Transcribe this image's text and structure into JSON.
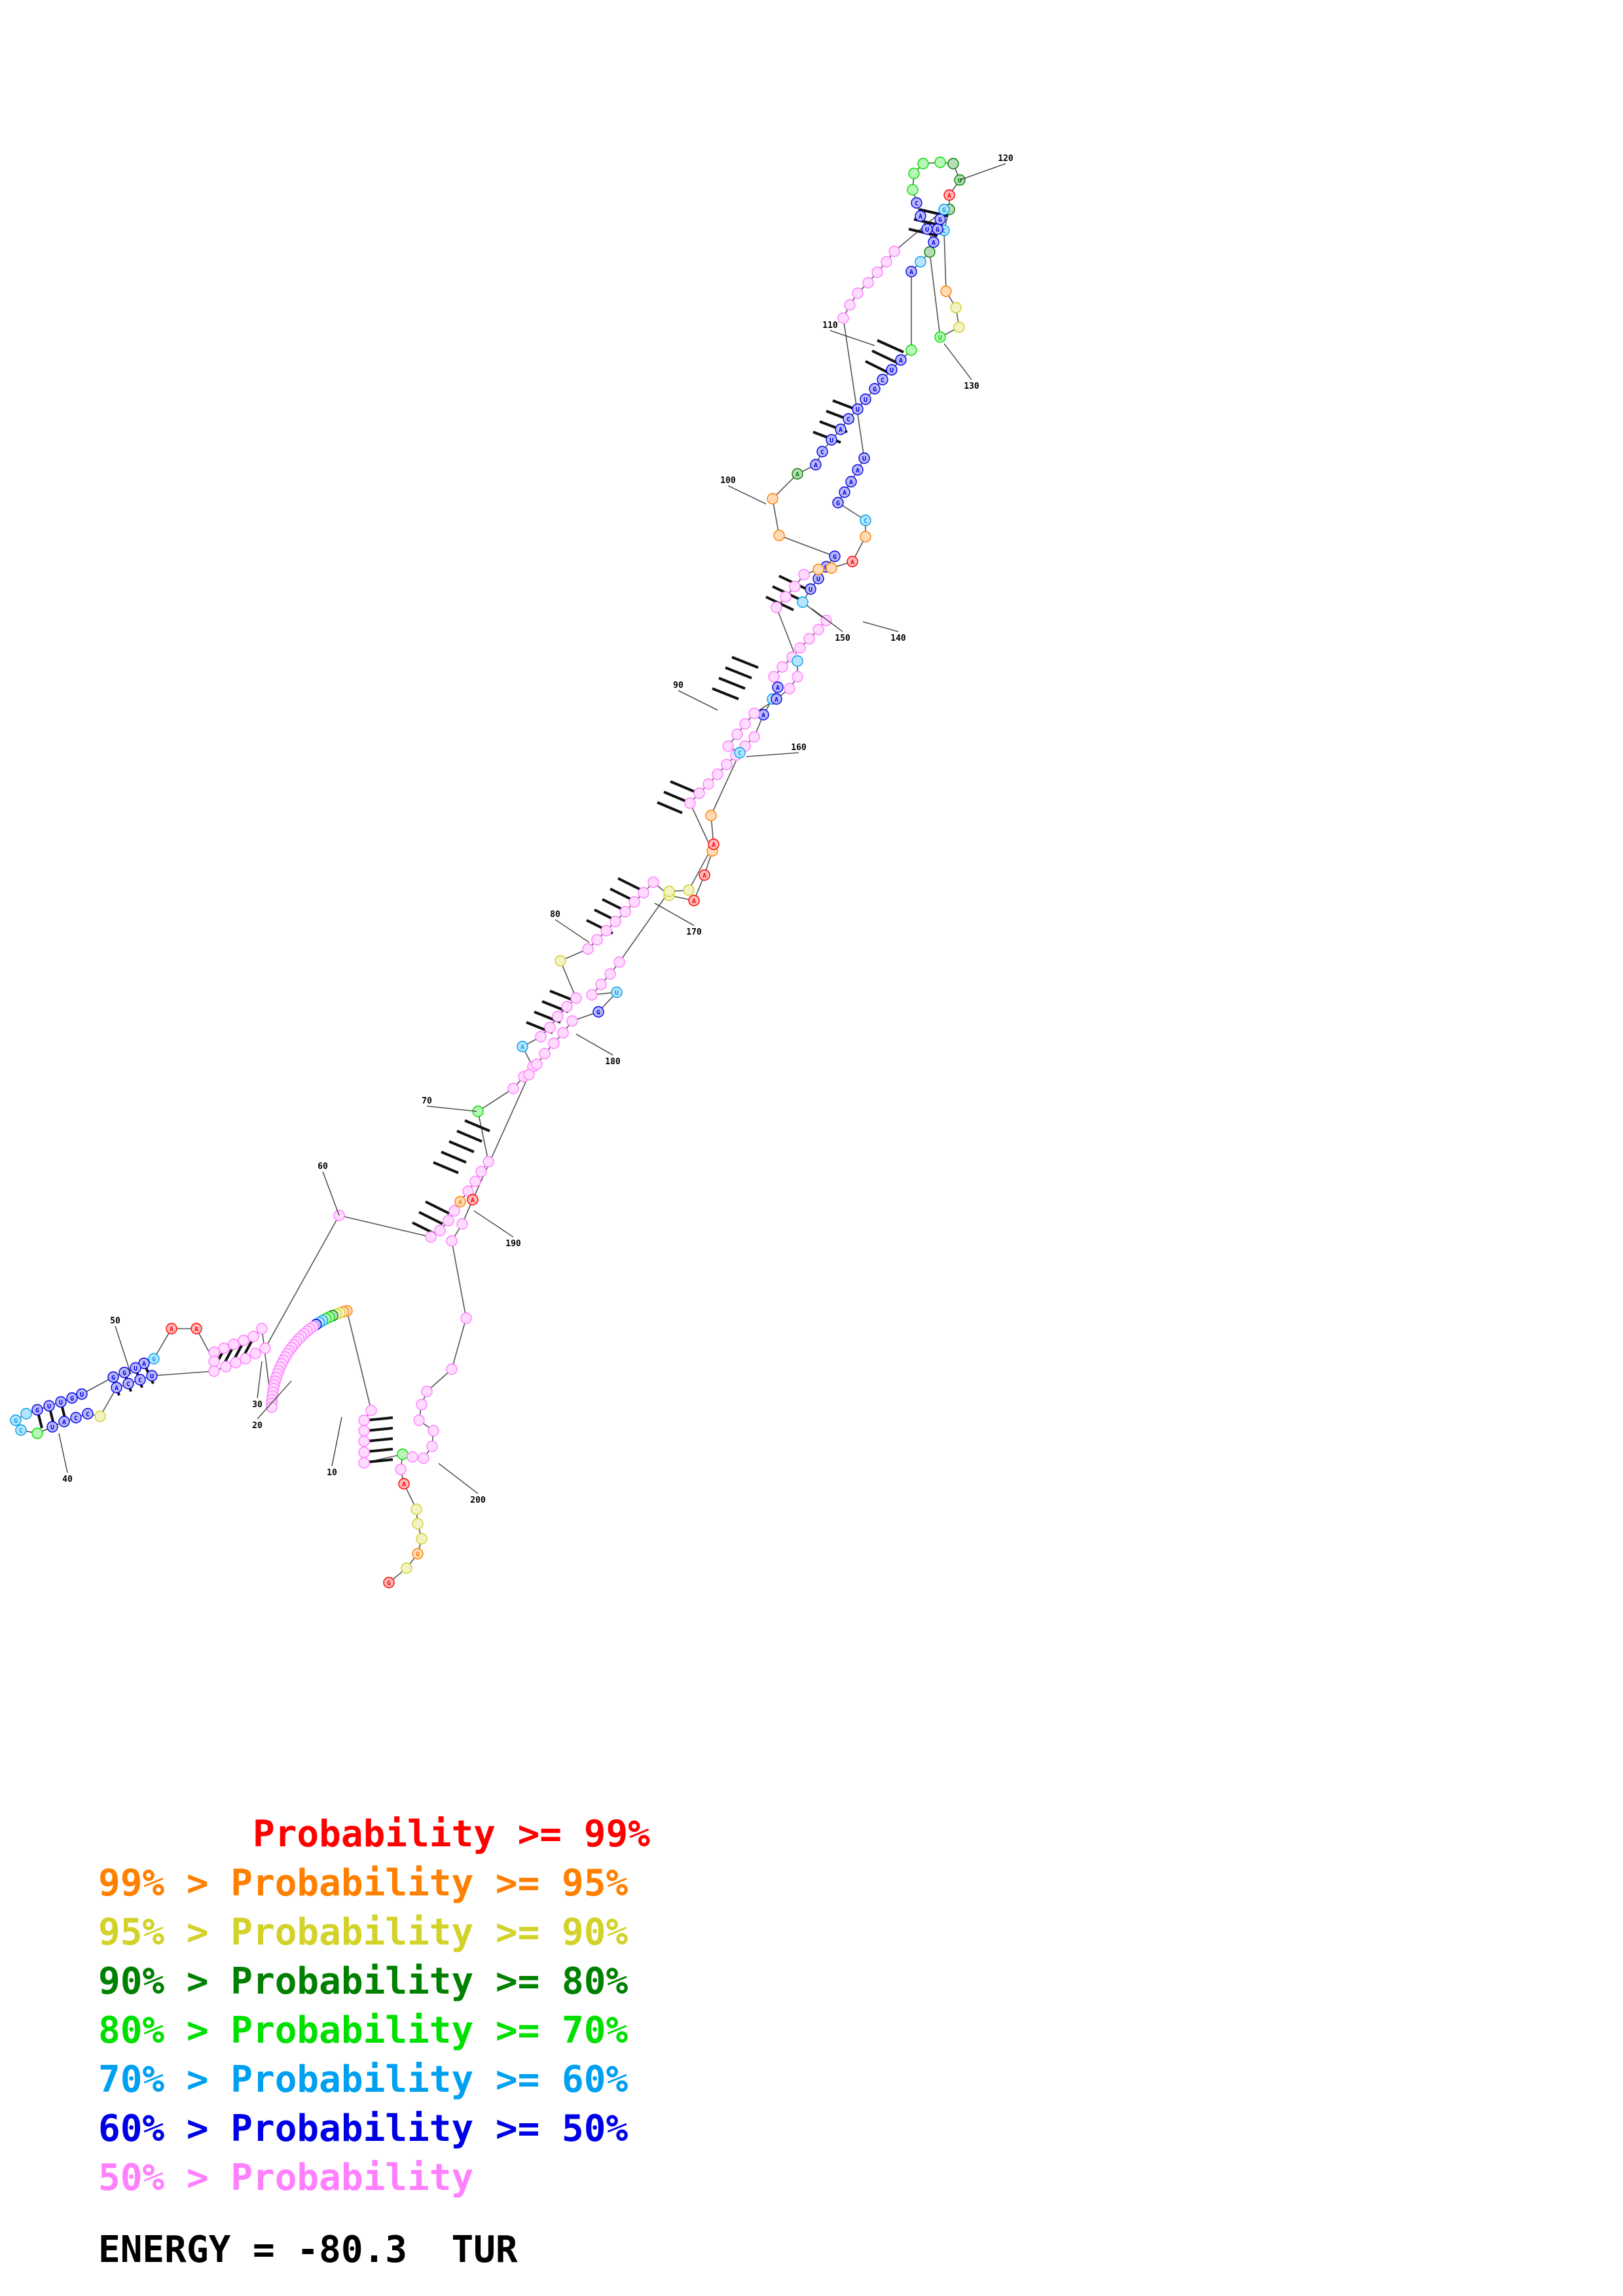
{
  "colors": {
    "p99": "#ff0000",
    "p95": "#ff8000",
    "p90": "#d2d22a",
    "p80": "#008000",
    "p70": "#00e000",
    "p60": "#00a0f0",
    "p50": "#0000e6",
    "plow": "#ff80ff"
  },
  "diagram": {
    "position_labels": [
      "10",
      "20",
      "30",
      "40",
      "50",
      "60",
      "70",
      "80",
      "90",
      "100",
      "110",
      "120",
      "130",
      "140",
      "150",
      "160",
      "170",
      "180",
      "190",
      "200"
    ]
  },
  "legend": [
    {
      "text": "       Probability >= 99%",
      "color_key": "p99"
    },
    {
      "text": "99% > Probability >= 95%",
      "color_key": "p95"
    },
    {
      "text": "95% > Probability >= 90%",
      "color_key": "p90"
    },
    {
      "text": "90% > Probability >= 80%",
      "color_key": "p80"
    },
    {
      "text": "80% > Probability >= 70%",
      "color_key": "p70"
    },
    {
      "text": "70% > Probability >= 60%",
      "color_key": "p60"
    },
    {
      "text": "60% > Probability >= 50%",
      "color_key": "p50"
    },
    {
      "text": "50% > Probability",
      "color_key": "plow"
    }
  ],
  "energy": "ENERGY = -80.3  TUR"
}
